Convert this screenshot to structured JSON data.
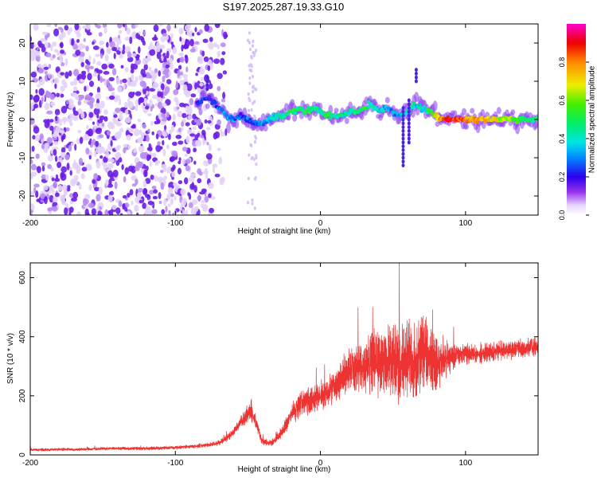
{
  "title": "S197.2025.287.19.33.G10",
  "chart_data": [
    {
      "type": "heatmap",
      "title": "S197.2025.287.19.33.G10",
      "xlabel": "Height of straight line (km)",
      "ylabel": "Frequency (Hz)",
      "xlim": [
        -200,
        150
      ],
      "ylim": [
        -25,
        25
      ],
      "xticks": [
        -200,
        -100,
        0,
        100
      ],
      "xtick_labels": [
        "-200",
        "-100",
        "0",
        "100"
      ],
      "yticks": [
        -20,
        -10,
        0,
        10,
        20
      ],
      "ytick_labels": [
        "-20",
        "-10",
        "0",
        "10",
        "20"
      ],
      "noise_region_x": [
        -200,
        -75
      ],
      "ridge": {
        "x": [
          -85,
          -80,
          -75,
          -70,
          -65,
          -60,
          -55,
          -50,
          -45,
          -40,
          -35,
          -30,
          -25,
          -20,
          -15,
          -10,
          -5,
          0,
          5,
          10,
          15,
          20,
          25,
          30,
          35,
          40,
          45,
          50,
          55,
          60,
          65,
          70,
          75,
          80,
          85,
          90,
          95,
          100,
          110,
          120,
          130,
          140,
          150
        ],
        "freq": [
          4,
          6,
          5,
          3,
          1,
          0,
          1,
          0,
          -1,
          -1,
          0,
          1,
          1,
          2,
          3,
          2,
          3,
          2,
          1,
          1,
          1,
          2,
          2,
          3,
          4,
          2,
          3,
          2,
          1,
          2,
          4,
          3,
          2,
          1,
          0,
          0,
          0,
          0,
          0,
          0,
          0,
          0,
          0
        ],
        "amplitude": [
          0.2,
          0.25,
          0.2,
          0.3,
          0.35,
          0.3,
          0.25,
          0.3,
          0.25,
          0.3,
          0.35,
          0.4,
          0.45,
          0.5,
          0.45,
          0.5,
          0.45,
          0.4,
          0.5,
          0.45,
          0.4,
          0.4,
          0.45,
          0.5,
          0.45,
          0.4,
          0.35,
          0.3,
          0.35,
          0.45,
          0.4,
          0.35,
          0.5,
          0.7,
          0.85,
          0.9,
          0.85,
          0.8,
          0.75,
          0.7,
          0.6,
          0.5,
          0.45
        ]
      },
      "colorbar": {
        "label": "Normalized spectral amplitude",
        "range": [
          0,
          1
        ],
        "ticks": [
          0.0,
          0.2,
          0.4,
          0.6,
          0.8
        ],
        "tick_labels": [
          "0.0",
          "0.2",
          "0.4",
          "0.6",
          "0.8"
        ]
      }
    },
    {
      "type": "line",
      "xlabel": "Height of straight line (km)",
      "ylabel": "SNR (10 * v/v)",
      "xlim": [
        -200,
        150
      ],
      "ylim": [
        0,
        650
      ],
      "xticks": [
        -200,
        -100,
        0,
        100
      ],
      "xtick_labels": [
        "-200",
        "-100",
        "0",
        "100"
      ],
      "yticks": [
        0,
        200,
        400,
        600
      ],
      "ytick_labels": [
        "0",
        "200",
        "400",
        "600"
      ],
      "series": [
        {
          "name": "SNR",
          "color": "#ee3333",
          "x": [
            -200,
            -190,
            -180,
            -170,
            -160,
            -150,
            -140,
            -130,
            -120,
            -110,
            -100,
            -90,
            -80,
            -70,
            -65,
            -60,
            -55,
            -48,
            -45,
            -42,
            -40,
            -36,
            -32,
            -30,
            -26,
            -22,
            -18,
            -15,
            -10,
            -5,
            0,
            5,
            10,
            15,
            20,
            25,
            30,
            35,
            40,
            45,
            50,
            55,
            60,
            65,
            70,
            75,
            80,
            85,
            90,
            95,
            100,
            110,
            120,
            130,
            140,
            150
          ],
          "y": [
            18,
            17,
            19,
            18,
            20,
            21,
            22,
            22,
            22,
            23,
            25,
            28,
            32,
            40,
            55,
            75,
            110,
            150,
            120,
            70,
            45,
            40,
            45,
            60,
            80,
            120,
            150,
            170,
            180,
            190,
            200,
            215,
            230,
            260,
            290,
            300,
            295,
            320,
            310,
            330,
            320,
            300,
            330,
            300,
            340,
            330,
            310,
            320,
            330,
            340,
            345,
            340,
            350,
            355,
            360,
            365
          ],
          "spread": [
            8,
            8,
            8,
            8,
            8,
            9,
            9,
            9,
            10,
            10,
            10,
            10,
            12,
            15,
            18,
            20,
            30,
            60,
            40,
            25,
            18,
            18,
            20,
            25,
            30,
            45,
            60,
            70,
            70,
            75,
            80,
            85,
            90,
            110,
            120,
            130,
            140,
            160,
            170,
            190,
            200,
            210,
            220,
            230,
            220,
            200,
            170,
            110,
            70,
            60,
            55,
            55,
            55,
            50,
            50,
            45
          ]
        }
      ]
    }
  ]
}
